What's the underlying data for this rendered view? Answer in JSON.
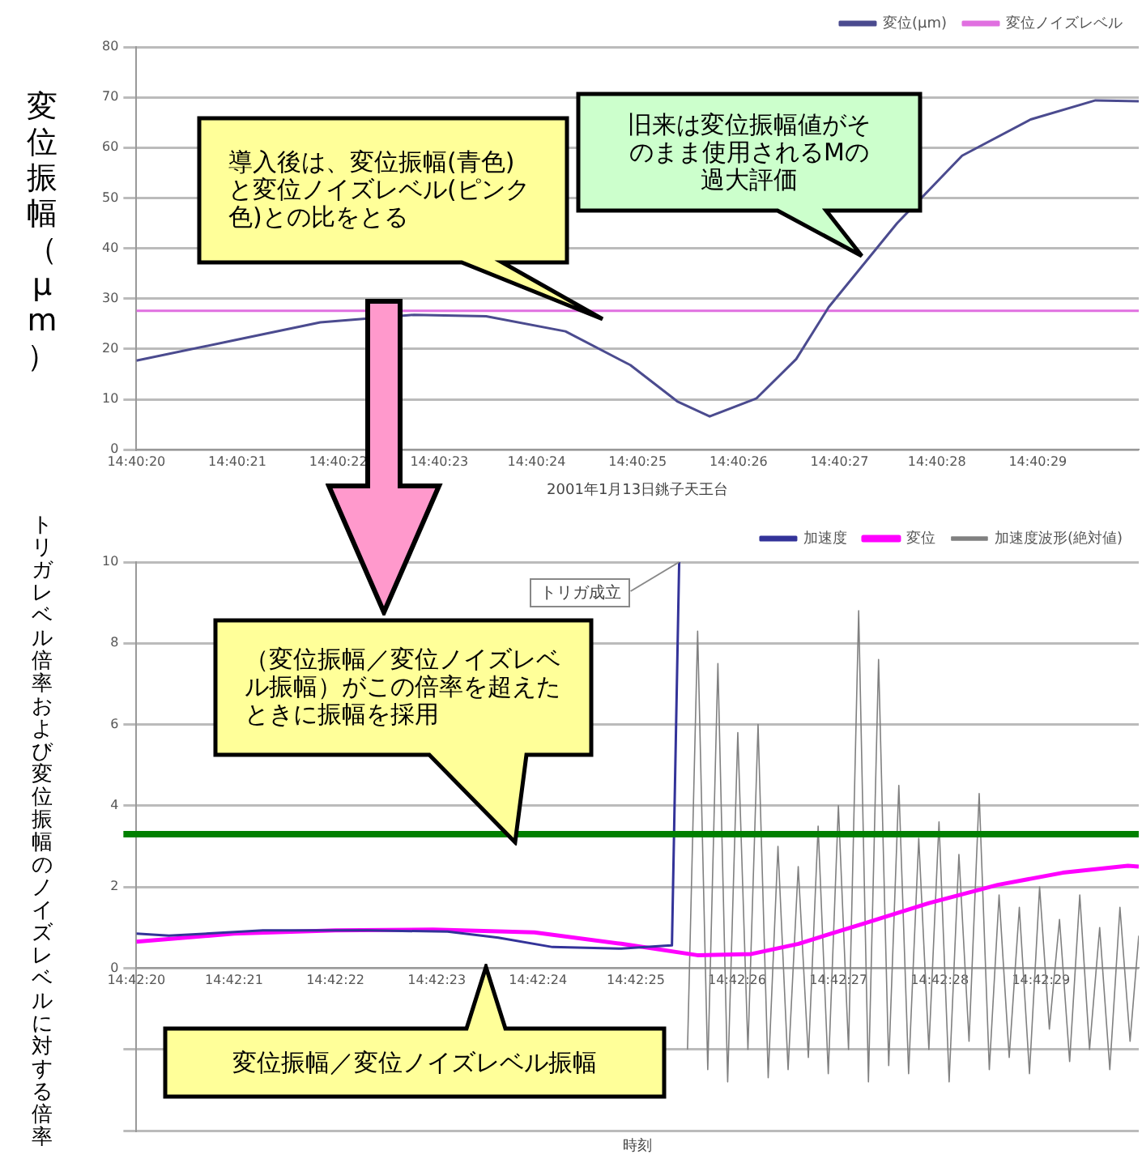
{
  "chart_data": [
    {
      "type": "line",
      "ylabel": "変位振幅（μm）",
      "xlabel": "2001年1月13日銚子天王台",
      "xlim": [
        14.67222,
        14.675
      ],
      "xticks": [
        {
          "value": 14.67222,
          "label": "14:40:20"
        },
        {
          "value": 14.6725,
          "label": "14:40:21"
        },
        {
          "value": 14.67278,
          "label": "14:40:22"
        },
        {
          "value": 14.67306,
          "label": "14:40:23"
        },
        {
          "value": 14.67333,
          "label": "14:40:24"
        },
        {
          "value": 14.67361,
          "label": "14:40:25"
        },
        {
          "value": 14.67389,
          "label": "14:40:26"
        },
        {
          "value": 14.67417,
          "label": "14:40:27"
        },
        {
          "value": 14.67444,
          "label": "14:40:28"
        },
        {
          "value": 14.67472,
          "label": "14:40:29"
        }
      ],
      "ylim": [
        0,
        80
      ],
      "yticks": [
        0,
        10,
        20,
        30,
        40,
        50,
        60,
        70,
        80
      ],
      "grid": "y",
      "legend": "top right",
      "marker": "none",
      "line_style": "solid",
      "series": [
        {
          "name": "変位(μm)",
          "color": "#4b4b8f",
          "x": [
            14.67222,
            14.67249,
            14.67273,
            14.67299,
            14.67319,
            14.67341,
            14.67359,
            14.67372,
            14.67381,
            14.67394,
            14.67405,
            14.67414,
            14.67433,
            14.67451,
            14.6747,
            14.67488,
            14.675
          ],
          "values": [
            17.7,
            21.7,
            25.3,
            26.8,
            26.5,
            23.5,
            16.8,
            9.6,
            6.6,
            10.2,
            18,
            28.3,
            45,
            58.4,
            65.6,
            69.4,
            69.2
          ]
        },
        {
          "name": "変位ノイズレベル",
          "color": "#e070e0",
          "x": [
            14.67222,
            14.675
          ],
          "values": [
            27.6,
            27.6
          ]
        }
      ],
      "annotations": [
        "導入後は、変位振幅(青色)と変位ノイズレベル(ピンク色)との比をとる",
        "旧来は変位振幅値がそのまま使用されるMの過大評価"
      ]
    },
    {
      "type": "line",
      "ylabel": "トリガレベル倍率および変位振幅のノイズレベルに対する倍率",
      "xlabel": "時刻",
      "xlim": [
        14.70556,
        14.70833
      ],
      "xticks": [
        {
          "value": 14.70556,
          "label": "14:42:20"
        },
        {
          "value": 14.70583,
          "label": "14:42:21"
        },
        {
          "value": 14.70611,
          "label": "14:42:22"
        },
        {
          "value": 14.70639,
          "label": "14:42:23"
        },
        {
          "value": 14.70667,
          "label": "14:42:24"
        },
        {
          "value": 14.70694,
          "label": "14:42:25"
        },
        {
          "value": 14.70722,
          "label": "14:42:26"
        },
        {
          "value": 14.7075,
          "label": "14:42:27"
        },
        {
          "value": 14.70778,
          "label": "14:42:28"
        },
        {
          "value": 14.70806,
          "label": "14:42:29"
        }
      ],
      "ylim": [
        -4,
        10
      ],
      "yticks": [
        {
          "value": -4,
          "label": null
        },
        {
          "value": -2,
          "label": null
        },
        0,
        2,
        4,
        6,
        8,
        10
      ],
      "grid": "y",
      "legend": "top right",
      "marker": "none",
      "line_style": "solid",
      "series": [
        {
          "name": "加速度",
          "color": "#333399",
          "x": [
            14.70556,
            14.70565,
            14.70591,
            14.7062,
            14.70642,
            14.70656,
            14.70671,
            14.7069,
            14.70702,
            14.70704,
            14.70706
          ],
          "values": [
            0.85,
            0.8,
            0.93,
            0.93,
            0.9,
            0.75,
            0.52,
            0.48,
            0.55,
            0.56,
            10
          ]
        },
        {
          "name": "変位",
          "color": "#ff00ff",
          "x": [
            14.70556,
            14.70583,
            14.70611,
            14.70638,
            14.70666,
            14.7069,
            14.70711,
            14.70726,
            14.70739,
            14.70757,
            14.70775,
            14.70794,
            14.70812,
            14.7083,
            14.70833
          ],
          "values": [
            0.65,
            0.85,
            0.93,
            0.95,
            0.88,
            0.6,
            0.32,
            0.35,
            0.6,
            1.1,
            1.6,
            2.05,
            2.35,
            2.52,
            2.5
          ]
        },
        {
          "name": "加速度波形(絶対値)",
          "color": "#808080",
          "x": [
            14.707083,
            14.707111,
            14.707139,
            14.707167,
            14.707194,
            14.707222,
            14.70725,
            14.707278,
            14.707306,
            14.707333,
            14.707361,
            14.707389,
            14.707417,
            14.707444,
            14.707472,
            14.7075,
            14.707528,
            14.707556,
            14.707583,
            14.707611,
            14.707639,
            14.707667,
            14.707694,
            14.707722,
            14.70775,
            14.707778,
            14.707806,
            14.707833,
            14.707861,
            14.707889,
            14.707917,
            14.707944,
            14.707972,
            14.708,
            14.708028,
            14.708056,
            14.708083,
            14.708111,
            14.708139,
            14.708167,
            14.708194,
            14.708222,
            14.70825,
            14.708278,
            14.708306,
            14.70833
          ],
          "values": [
            -2,
            8.3,
            -2.5,
            7.5,
            -2.8,
            5.8,
            -2,
            6,
            -2.7,
            3,
            -2.5,
            2.5,
            -2.2,
            3.5,
            -2.6,
            4,
            -2,
            8.8,
            -2.8,
            7.6,
            -2.4,
            4.5,
            -2.6,
            3.2,
            -2,
            3.6,
            -2.8,
            2.8,
            -1.8,
            4.3,
            -2.5,
            1.8,
            -2.2,
            1.5,
            -2.6,
            2,
            -1.5,
            1.2,
            -2.3,
            1.8,
            -2,
            1,
            -2.5,
            1.5,
            -1.8,
            0.8
          ]
        }
      ],
      "ref_lines": [
        {
          "axis": "y",
          "value": 3.3,
          "color": "#008000"
        }
      ],
      "annotations": [
        "（変位振幅／変位ノイズレベル振幅）がこの倍率を超えたときに振幅を採用",
        "変位振幅／変位ノイズレベル振幅",
        {
          "text": "トリガ成立",
          "x": 14.70706,
          "y": 10
        }
      ]
    }
  ]
}
